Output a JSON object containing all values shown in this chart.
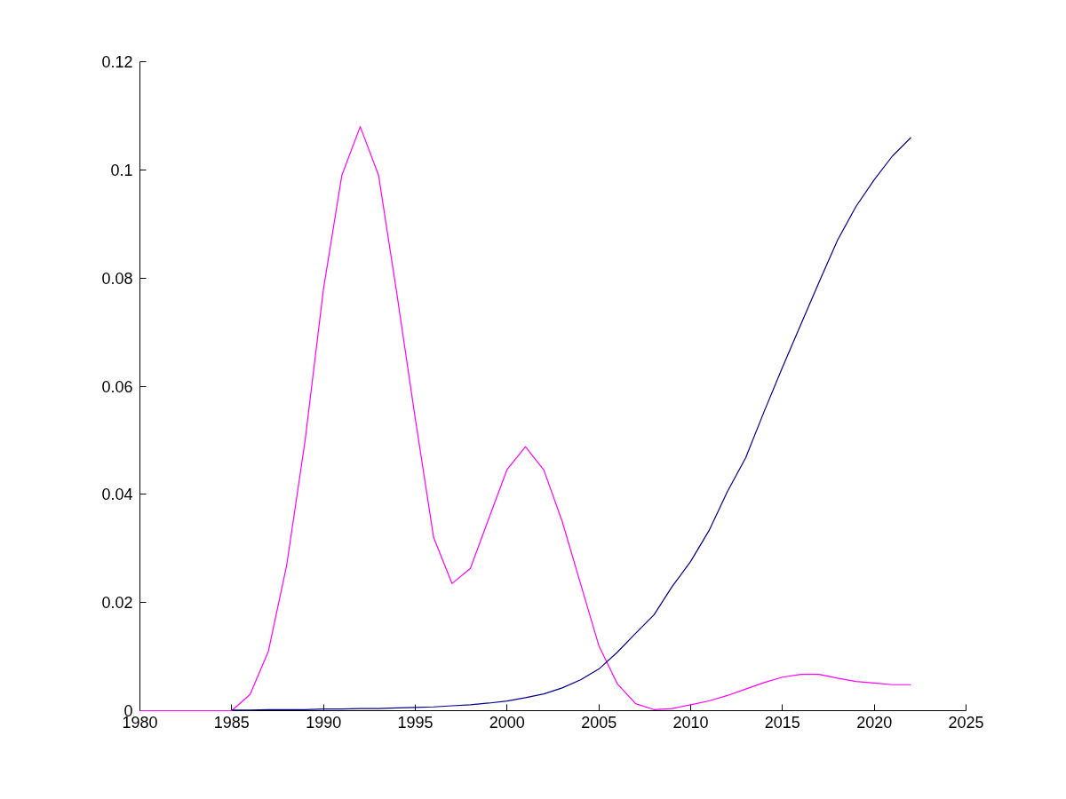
{
  "chart_data": {
    "type": "line",
    "x": [
      1980,
      1981,
      1982,
      1983,
      1984,
      1985,
      1986,
      1987,
      1988,
      1989,
      1990,
      1991,
      1992,
      1993,
      1994,
      1995,
      1996,
      1997,
      1998,
      1999,
      2000,
      2001,
      2002,
      2003,
      2004,
      2005,
      2006,
      2007,
      2008,
      2009,
      2010,
      2011,
      2012,
      2013,
      2014,
      2015,
      2016,
      2017,
      2018,
      2019,
      2020,
      2021,
      2022
    ],
    "series": [
      {
        "color": "#ff00ff",
        "values": [
          0,
          0,
          0,
          0,
          0,
          0,
          0.003,
          0.011,
          0.027,
          0.05,
          0.078,
          0.099,
          0.108,
          0.099,
          0.077,
          0.054,
          0.032,
          0.0235,
          0.0263,
          0.0355,
          0.0446,
          0.0488,
          0.0445,
          0.035,
          0.0235,
          0.012,
          0.005,
          0.0013,
          0.0002,
          0.0004,
          0.0011,
          0.0018,
          0.0028,
          0.004,
          0.0052,
          0.0062,
          0.0067,
          0.0067,
          0.006,
          0.0054,
          0.0051,
          0.0048,
          0.0048
        ]
      },
      {
        "color": "#00008b",
        "values": [
          null,
          null,
          null,
          null,
          null,
          0.0001,
          0.0001,
          0.0002,
          0.0002,
          0.0002,
          0.0003,
          0.0003,
          0.0004,
          0.0004,
          0.0005,
          0.0006,
          0.0007,
          0.0009,
          0.0011,
          0.0014,
          0.0018,
          0.0024,
          0.0031,
          0.0042,
          0.0057,
          0.0077,
          0.0108,
          0.0143,
          0.0177,
          0.023,
          0.0276,
          0.0333,
          0.0405,
          0.0468,
          0.0553,
          0.0635,
          0.0714,
          0.0793,
          0.087,
          0.0932,
          0.0982,
          0.1026,
          0.106
        ]
      }
    ],
    "xlim": [
      1980,
      2025
    ],
    "xticks": [
      1980,
      1985,
      1990,
      1995,
      2000,
      2005,
      2010,
      2015,
      2020,
      2025
    ],
    "ylim": [
      0,
      0.12
    ],
    "yticks": [
      0,
      0.02,
      0.04,
      0.06,
      0.08,
      0.1,
      0.12
    ],
    "grid": false,
    "marker": "none",
    "line_style": "solid"
  }
}
